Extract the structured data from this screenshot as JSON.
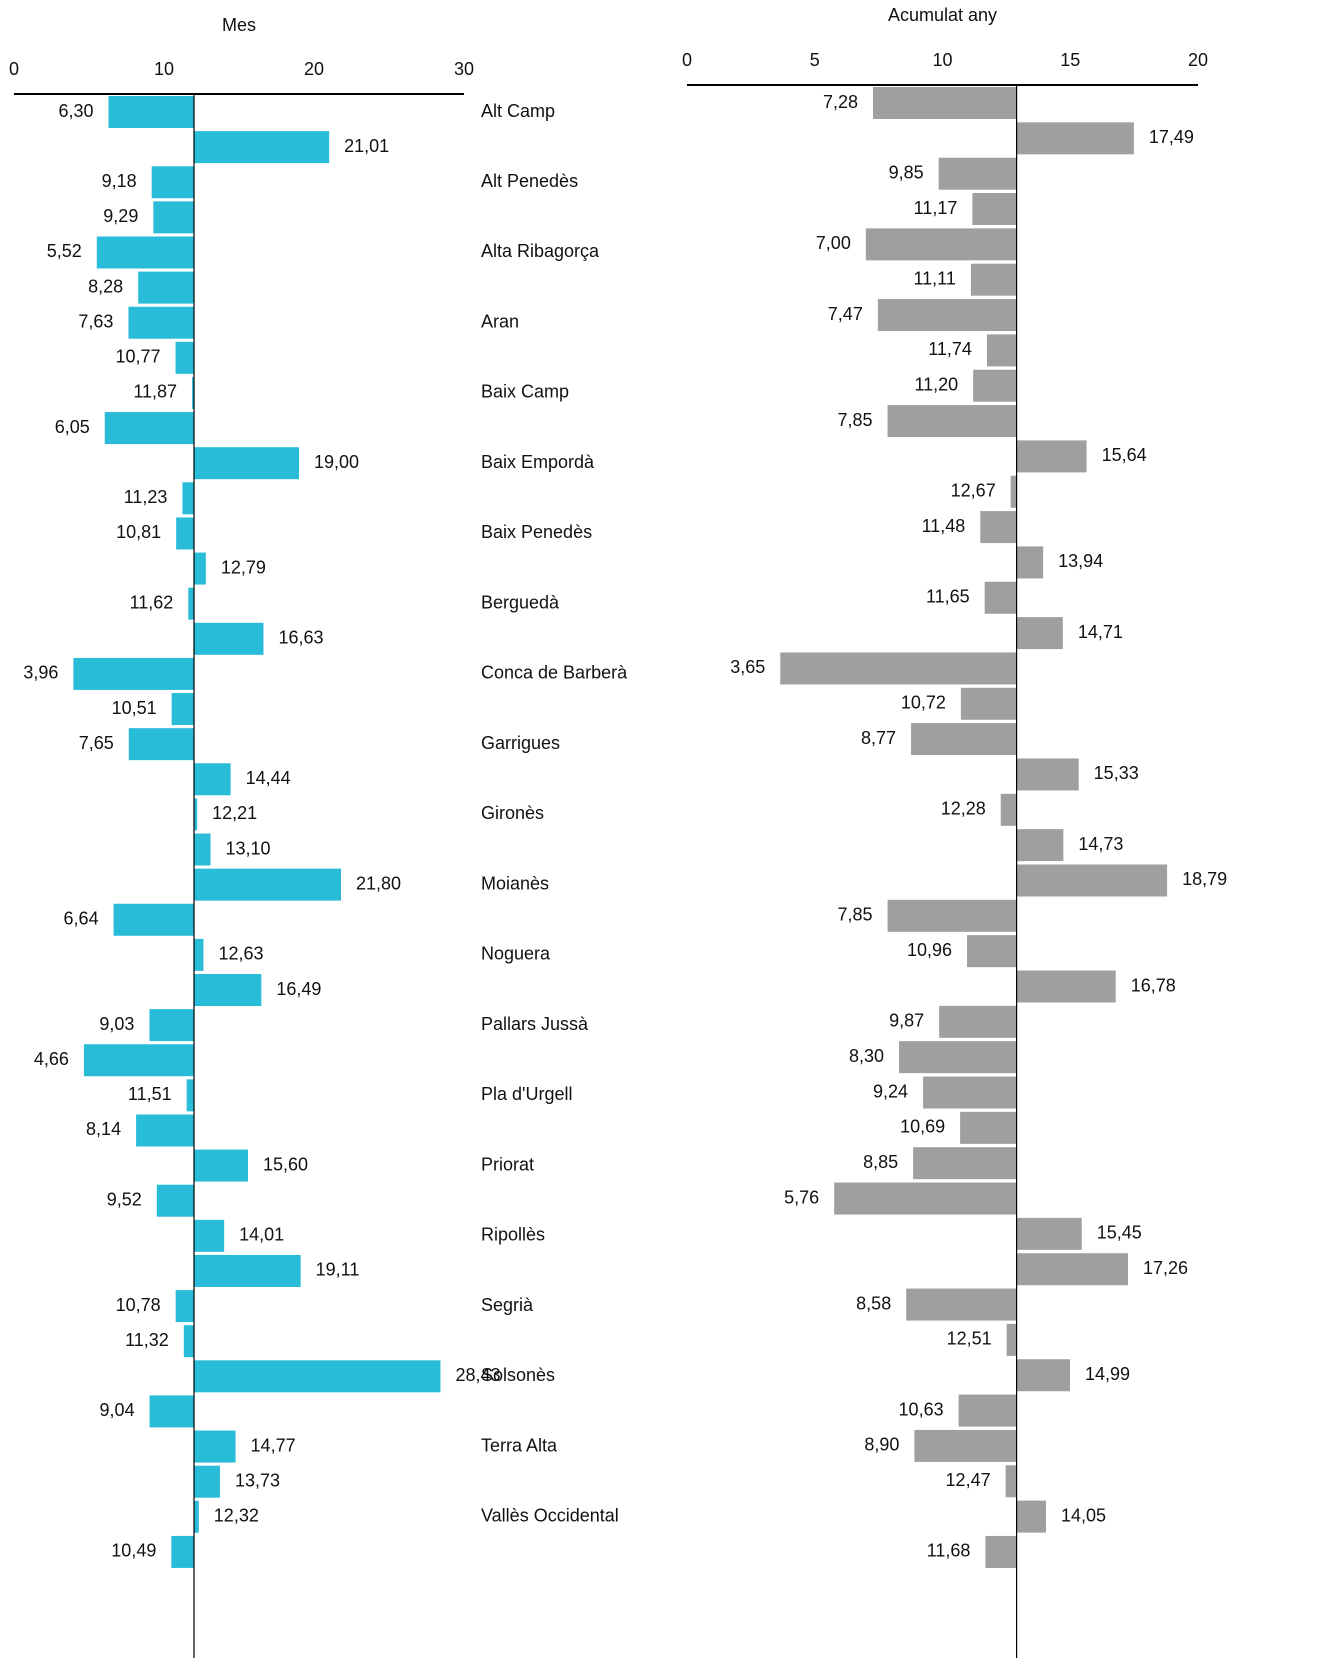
{
  "chart_data": [
    {
      "type": "bar",
      "orientation": "horizontal",
      "title": "Mes",
      "color": "#29bcd8",
      "base": 12,
      "xlim": [
        0,
        30
      ],
      "xticks": [
        0,
        10,
        20,
        30
      ],
      "categories": [
        "Alt Camp",
        null,
        "Alt Penedès",
        null,
        "Alta Ribagorça",
        null,
        "Aran",
        null,
        "Baix Camp",
        null,
        "Baix Empordà",
        null,
        "Baix Penedès",
        null,
        "Berguedà",
        null,
        "Conca de Barberà",
        null,
        "Garrigues",
        null,
        "Gironès",
        null,
        "Moianès",
        null,
        "Noguera",
        null,
        "Pallars Jussà",
        null,
        "Pla d'Urgell",
        null,
        "Priorat",
        null,
        "Ripollès",
        null,
        "Segrià",
        null,
        "Solsonès",
        null,
        "Terra Alta",
        null,
        "Vallès Occidental",
        null
      ],
      "values": [
        6.3,
        21.01,
        9.18,
        9.29,
        5.52,
        8.28,
        7.63,
        10.77,
        11.87,
        6.05,
        19.0,
        11.23,
        10.81,
        12.79,
        11.62,
        16.63,
        3.96,
        10.51,
        7.65,
        14.44,
        12.21,
        13.1,
        21.8,
        6.64,
        12.63,
        16.49,
        9.03,
        4.66,
        11.51,
        8.14,
        15.6,
        9.52,
        14.01,
        19.11,
        10.78,
        11.32,
        28.43,
        9.04,
        14.77,
        13.73,
        12.32,
        10.49
      ],
      "value_labels": [
        "6,30",
        "21,01",
        "9,18",
        "9,29",
        "5,52",
        "8,28",
        "7,63",
        "10,77",
        "11,87",
        "6,05",
        "19,00",
        "11,23",
        "10,81",
        "12,79",
        "11,62",
        "16,63",
        "3,96",
        "10,51",
        "7,65",
        "14,44",
        "12,21",
        "13,10",
        "21,80",
        "6,64",
        "12,63",
        "16,49",
        "9,03",
        "4,66",
        "11,51",
        "8,14",
        "15,60",
        "9,52",
        "14,01",
        "19,11",
        "10,78",
        "11,32",
        "28,43",
        "9,04",
        "14,77",
        "13,73",
        "12,32",
        "10,49"
      ]
    },
    {
      "type": "bar",
      "orientation": "horizontal",
      "title": "Acumulat any",
      "color": "#9d9fa0",
      "base": 12.9,
      "xlim": [
        0,
        20
      ],
      "xticks": [
        0,
        5,
        10,
        15,
        20
      ],
      "values": [
        7.28,
        17.49,
        9.85,
        11.17,
        7.0,
        11.11,
        7.47,
        11.74,
        11.2,
        7.85,
        15.64,
        12.67,
        11.48,
        13.94,
        11.65,
        14.71,
        3.65,
        10.72,
        8.77,
        15.33,
        12.28,
        14.73,
        18.79,
        7.85,
        10.96,
        16.78,
        9.87,
        8.3,
        9.24,
        10.69,
        8.85,
        5.76,
        15.45,
        17.26,
        8.58,
        12.51,
        14.99,
        10.63,
        8.9,
        12.47,
        14.05,
        11.68
      ],
      "value_labels": [
        "7,28",
        "17,49",
        "9,85",
        "11,17",
        "7,00",
        "11,11",
        "7,47",
        "11,74",
        "11,20",
        "7,85",
        "15,64",
        "12,67",
        "11,48",
        "13,94",
        "11,65",
        "14,71",
        "3,65",
        "10,72",
        "8,77",
        "15,33",
        "12,28",
        "14,73",
        "18,79",
        "7,85",
        "10,96",
        "16,78",
        "9,87",
        "8,30",
        "9,24",
        "10,69",
        "8,85",
        "5,76",
        "15,45",
        "17,26",
        "8,58",
        "12,51",
        "14,99",
        "10,63",
        "8,90",
        "12,47",
        "14,05",
        "11,68"
      ]
    }
  ]
}
